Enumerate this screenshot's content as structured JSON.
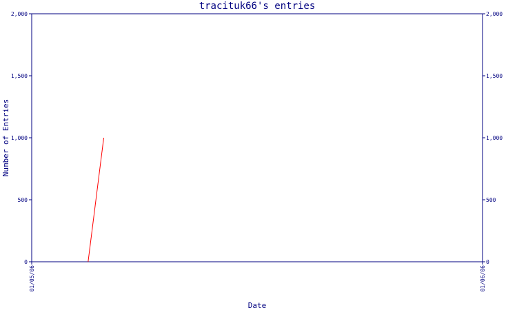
{
  "chart_data": {
    "type": "line",
    "title": "tracituk66's entries",
    "xlabel": "Date",
    "ylabel": "Number of Entries",
    "ylim": [
      0,
      2000
    ],
    "y_ticks": [
      0,
      500,
      1000,
      1500,
      2000
    ],
    "y_tick_labels": [
      "0",
      "500",
      "1,000",
      "1,500",
      "2,000"
    ],
    "x_tick_labels": [
      "01/05/06",
      "01/06/06"
    ],
    "xlim": [
      "2006-01-05",
      "2006-01-06"
    ],
    "series": [
      {
        "color": "#ff0000",
        "x": [
          "2006-01-05 03:00",
          "2006-01-05 03:50"
        ],
        "y": [
          0,
          1000
        ]
      }
    ],
    "colors": {
      "axis": "#000080",
      "text": "#000080",
      "background": "#ffffff"
    },
    "grid": false
  }
}
